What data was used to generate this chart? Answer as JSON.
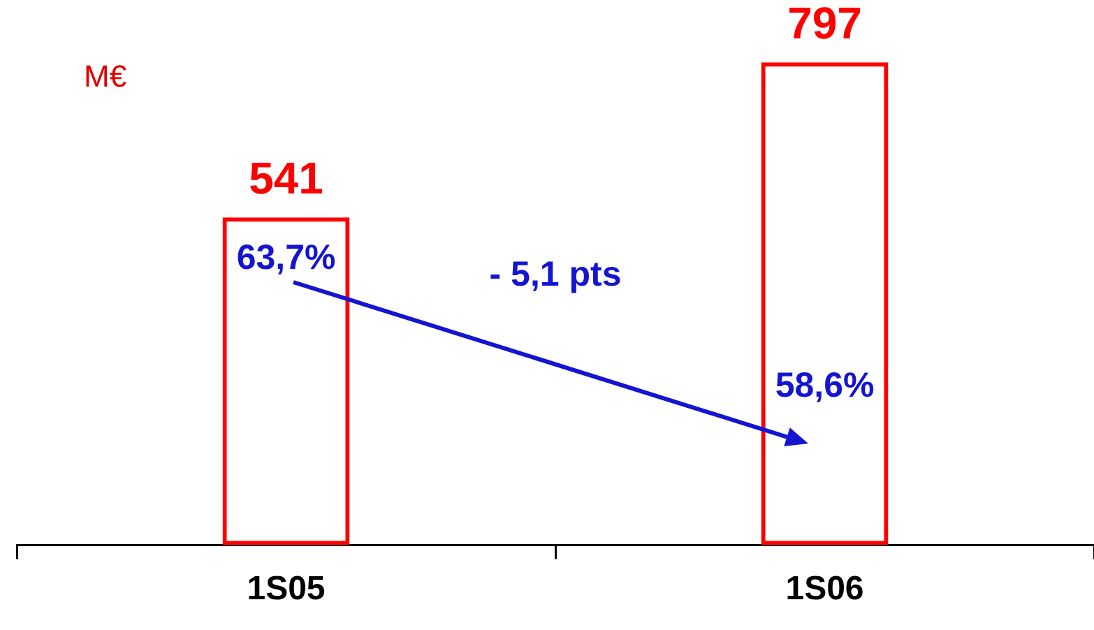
{
  "chart_data": {
    "type": "bar",
    "ylabel": "M€",
    "categories": [
      "1S05",
      "1S06"
    ],
    "values": [
      541,
      797
    ],
    "color": "#ff0000",
    "data_labels": true,
    "grid": false,
    "legend": false,
    "tick_labels": "x",
    "annotations": [
      "63,7%",
      "58,6%",
      "- 5,1 pts"
    ]
  }
}
